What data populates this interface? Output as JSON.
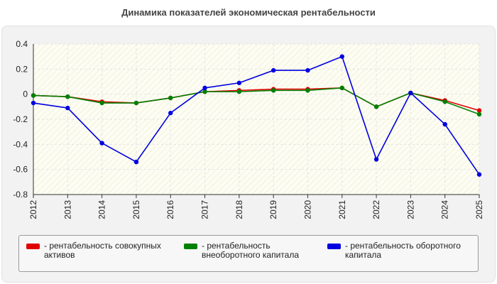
{
  "chart_data": {
    "type": "line",
    "title": "Динамика показателей экономическая рентабельности",
    "xlabel": "",
    "ylabel": "",
    "x": [
      "2012",
      "2013",
      "2014",
      "2015",
      "2016",
      "2017",
      "2018",
      "2019",
      "2020",
      "2021",
      "2022",
      "2023",
      "2024",
      "2025"
    ],
    "ylim": [
      -0.8,
      0.4
    ],
    "yticks": [
      "0.4",
      "0.2",
      "0",
      "-0.2",
      "-0.4",
      "-0.6",
      "-0.8"
    ],
    "ytick_values": [
      0.4,
      0.2,
      0,
      -0.2,
      -0.4,
      -0.6,
      -0.8
    ],
    "grid": true,
    "legend_position": "bottom",
    "series": [
      {
        "name": "- рентабельность совокупных активов",
        "color": "#e00000",
        "values": [
          -0.01,
          -0.02,
          -0.06,
          -0.07,
          -0.03,
          0.02,
          0.03,
          0.04,
          0.04,
          0.05,
          -0.1,
          0.01,
          -0.05,
          -0.13
        ]
      },
      {
        "name": "- рентабельность внеоборотного капитала",
        "color": "#008000",
        "values": [
          -0.01,
          -0.02,
          -0.07,
          -0.07,
          -0.03,
          0.02,
          0.02,
          0.03,
          0.03,
          0.05,
          -0.1,
          0.01,
          -0.06,
          -0.16
        ]
      },
      {
        "name": "- рентабельность оборотного капитала",
        "color": "#0000e0",
        "values": [
          -0.07,
          -0.11,
          -0.39,
          -0.54,
          -0.15,
          0.05,
          0.09,
          0.19,
          0.19,
          0.3,
          -0.52,
          0.01,
          -0.24,
          -0.64
        ]
      }
    ]
  }
}
